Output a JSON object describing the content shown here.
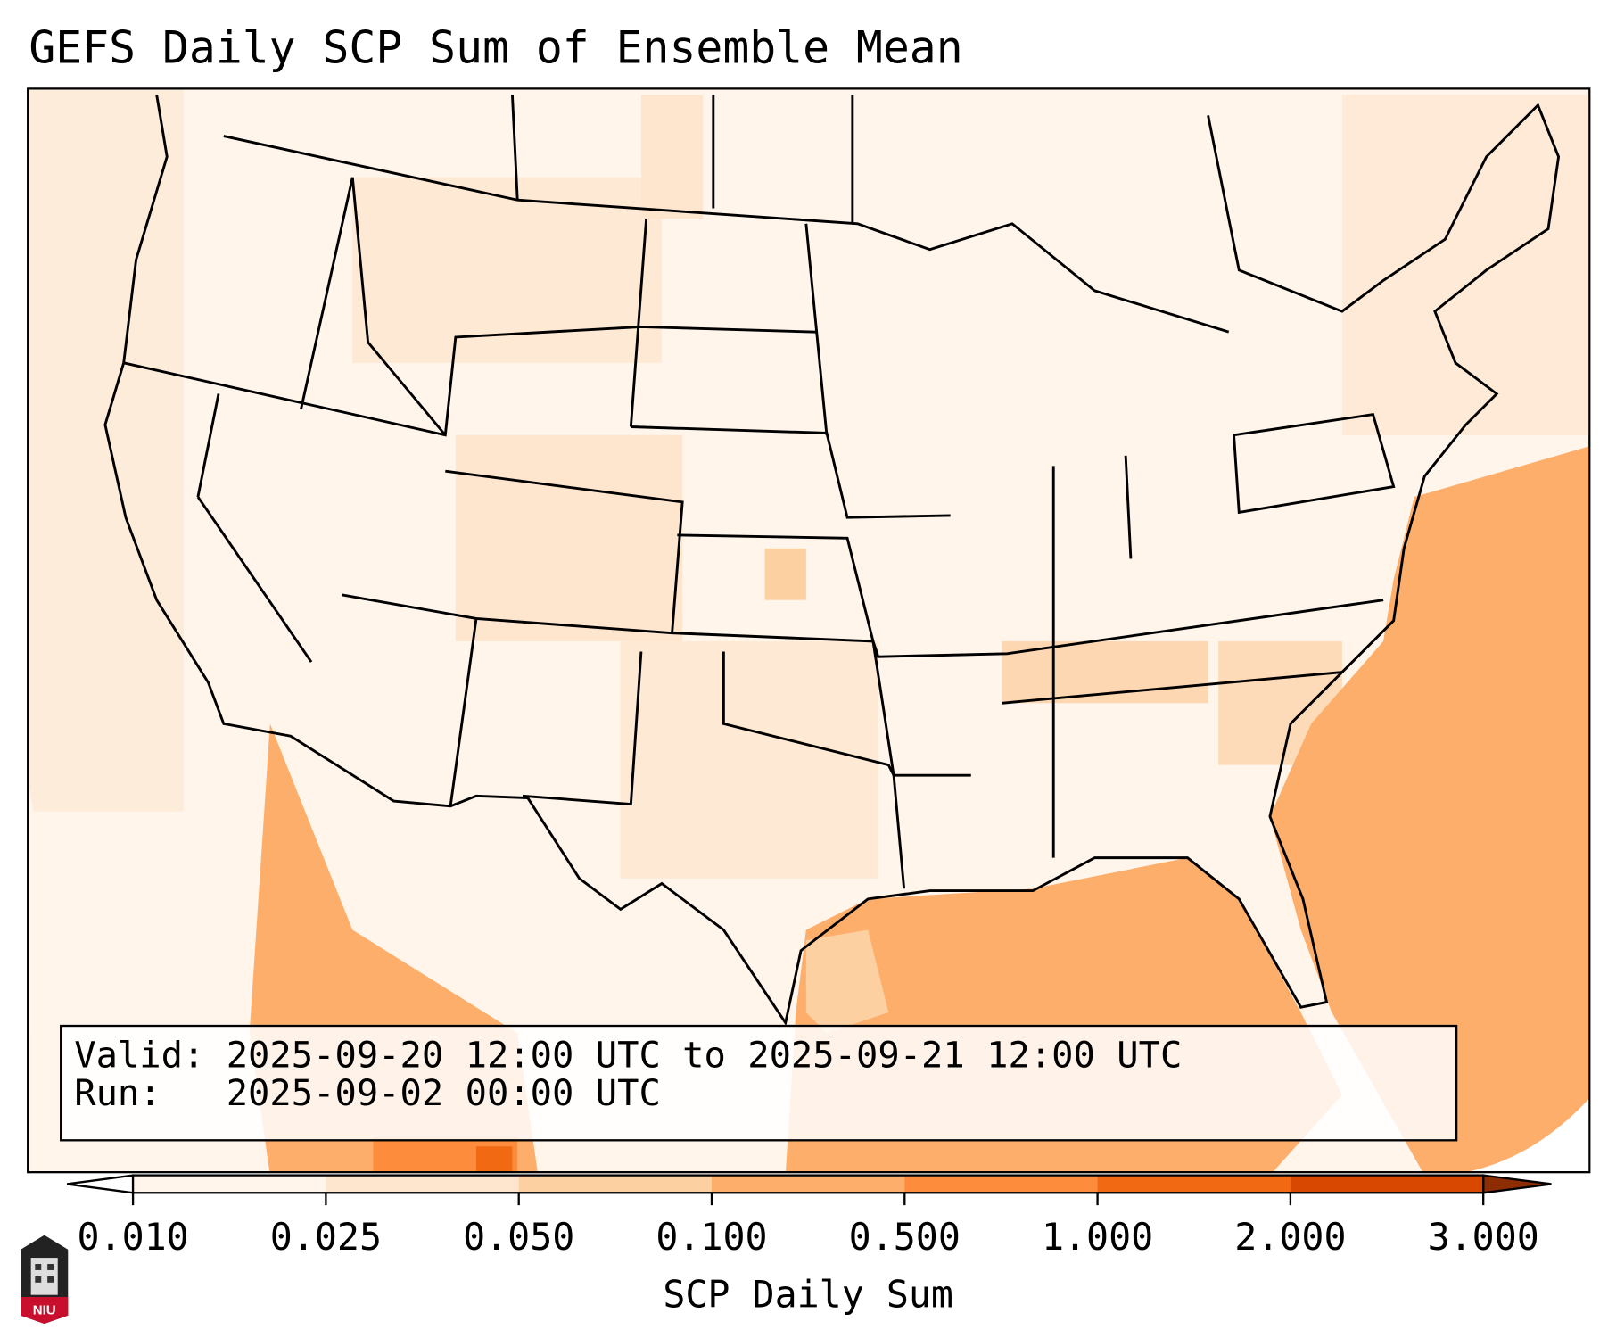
{
  "title": "GEFS Daily SCP Sum of Ensemble Mean",
  "info": {
    "valid_line": "Valid: 2025-09-20 12:00 UTC to 2025-09-21 12:00 UTC",
    "run_line": "Run:   2025-09-02 00:00 UTC"
  },
  "colorbar": {
    "label": "SCP Daily Sum",
    "ticks": [
      "0.010",
      "0.025",
      "0.050",
      "0.100",
      "0.500",
      "1.000",
      "2.000",
      "3.000"
    ],
    "colors": [
      "#fff5eb",
      "#fee6ce",
      "#fdd0a2",
      "#fdae6b",
      "#fd8d3c",
      "#f16913",
      "#d94801"
    ],
    "under_color": "#ffffff",
    "over_color": "#8c2d04",
    "extend": "both"
  },
  "logo": {
    "text": "NIU",
    "color": "#c8102e"
  }
}
